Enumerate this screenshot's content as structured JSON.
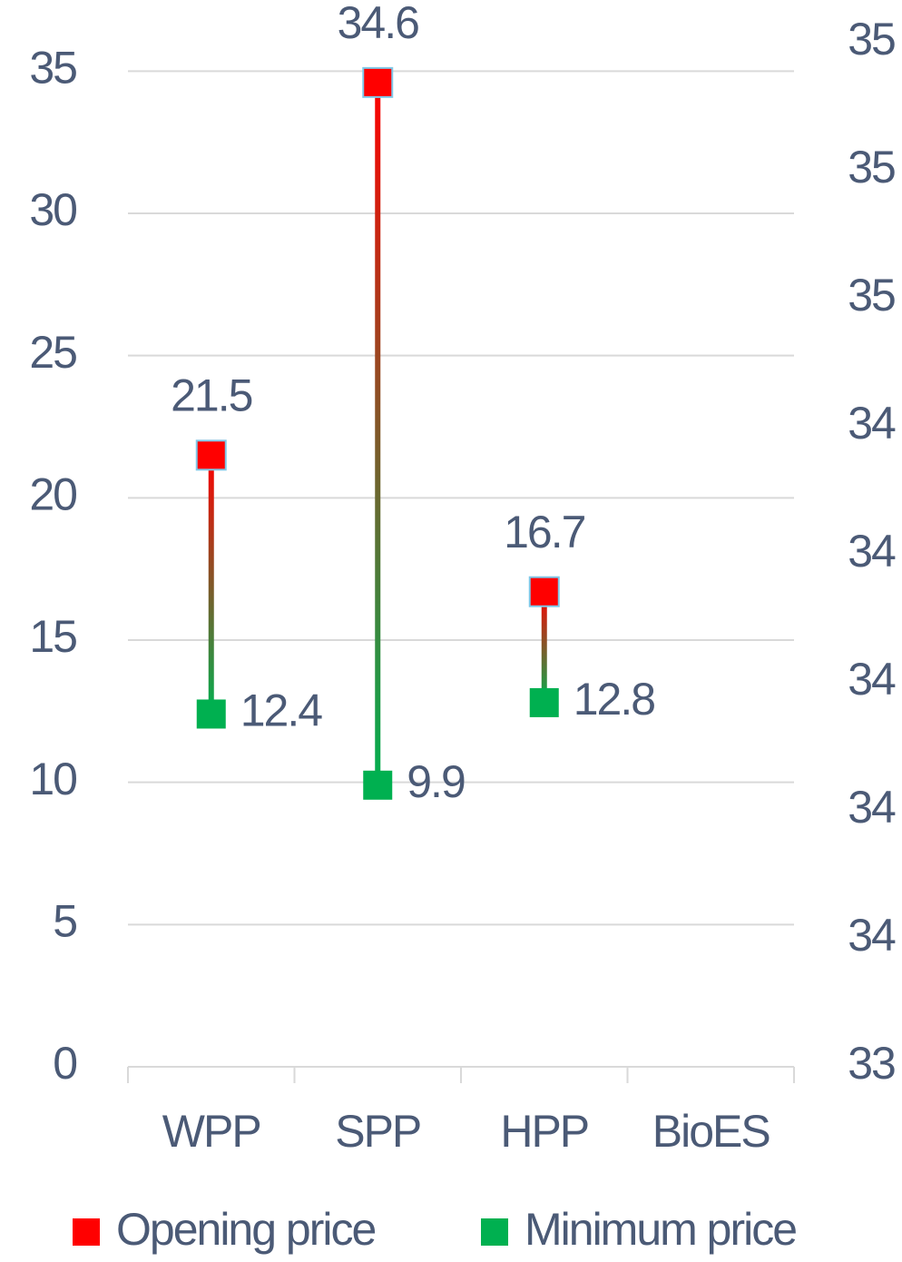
{
  "chart_data": {
    "type": "range-dot",
    "categories": [
      "WPP",
      "SPP",
      "HPP",
      "BioES"
    ],
    "series": [
      {
        "name": "Opening price",
        "color": "#ff0000",
        "values": [
          21.5,
          34.6,
          16.7,
          null
        ]
      },
      {
        "name": "Minimum price",
        "color": "#00b050",
        "values": [
          12.4,
          9.9,
          12.8,
          null
        ]
      }
    ],
    "ylim": [
      0,
      36
    ],
    "yticks": [
      0,
      5,
      10,
      15,
      20,
      25,
      30,
      35
    ],
    "y2lim": [
      33.4,
      35.0
    ],
    "y2ticks": [
      {
        "value": 33.4,
        "label": "33"
      },
      {
        "value": 33.6,
        "label": "34"
      },
      {
        "value": 33.8,
        "label": "34"
      },
      {
        "value": 34.0,
        "label": "34"
      },
      {
        "value": 34.2,
        "label": "34"
      },
      {
        "value": 34.4,
        "label": "34"
      },
      {
        "value": 34.6,
        "label": "35"
      },
      {
        "value": 34.8,
        "label": "35"
      },
      {
        "value": 35.0,
        "label": "35"
      }
    ],
    "grid": true,
    "legend": "bottom"
  }
}
